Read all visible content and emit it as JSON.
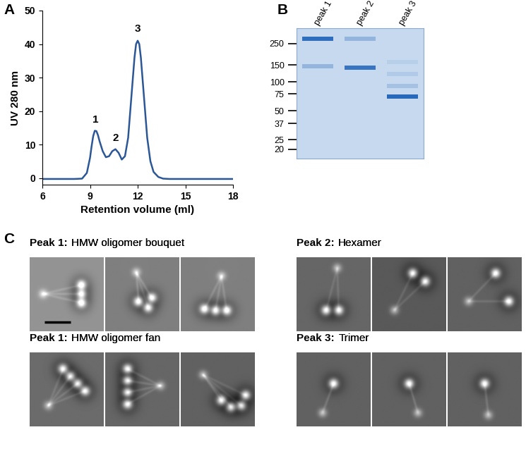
{
  "chart_data": {
    "panel": "A",
    "type": "line",
    "color": "#2b5797",
    "x": [
      6,
      7,
      8,
      8.5,
      8.8,
      9.0,
      9.1,
      9.2,
      9.3,
      9.4,
      9.5,
      9.6,
      9.8,
      10.0,
      10.2,
      10.4,
      10.6,
      10.8,
      11.0,
      11.2,
      11.4,
      11.6,
      11.8,
      11.9,
      12.0,
      12.1,
      12.2,
      12.4,
      12.6,
      12.8,
      13.0,
      13.3,
      13.6,
      14,
      15,
      16,
      17,
      18
    ],
    "values": [
      -0.3,
      -0.3,
      -0.3,
      -0.2,
      1.5,
      6,
      9.5,
      12.5,
      14.1,
      14.0,
      12.8,
      11,
      8,
      6.2,
      6.5,
      8.0,
      8.6,
      7.5,
      5.5,
      6.5,
      12,
      24,
      36,
      40,
      41,
      40,
      36,
      24,
      12,
      5,
      1.8,
      0.3,
      -0.2,
      -0.3,
      -0.3,
      -0.3,
      -0.3,
      -0.3
    ],
    "x_label": "Retention volume (ml)",
    "y_label": "UV 280 nm",
    "xlim": [
      6,
      18
    ],
    "xticks": [
      6,
      9,
      12,
      15,
      18
    ],
    "ylim": [
      -2,
      50
    ],
    "yticks": [
      0,
      10,
      20,
      30,
      40,
      50
    ],
    "annotations": [
      {
        "text": "1",
        "x": 9.35,
        "y": 16
      },
      {
        "text": "2",
        "x": 10.6,
        "y": 10.5
      },
      {
        "text": "3",
        "x": 12.0,
        "y": 43
      }
    ]
  },
  "gel": {
    "panel": "B",
    "lane_labels": [
      "peak 1",
      "peak 2",
      "peak 3"
    ],
    "markers_kDa": [
      250,
      150,
      100,
      75,
      50,
      37,
      25,
      20
    ],
    "ylim": [
      16,
      360
    ],
    "bands": [
      {
        "lane": 0,
        "kDa": 280,
        "intensity": 0.9
      },
      {
        "lane": 0,
        "kDa": 145,
        "intensity": 0.3
      },
      {
        "lane": 1,
        "kDa": 280,
        "intensity": 0.3
      },
      {
        "lane": 1,
        "kDa": 140,
        "intensity": 0.85
      },
      {
        "lane": 2,
        "kDa": 70,
        "intensity": 0.95
      },
      {
        "lane": 2,
        "kDa": 90,
        "intensity": 0.2
      },
      {
        "lane": 2,
        "kDa": 120,
        "intensity": 0.12
      },
      {
        "lane": 2,
        "kDa": 160,
        "intensity": 0.08
      }
    ]
  },
  "micrographs": {
    "panel": "C",
    "groups": [
      {
        "peak": "Peak 1:",
        "label": "HMW oligomer bouquet"
      },
      {
        "peak": "Peak 2:",
        "label": "Hexamer"
      },
      {
        "peak": "Peak 1:",
        "label": "HMW oligomer fan"
      },
      {
        "peak": "Peak 3:",
        "label": "Trimer"
      }
    ]
  }
}
